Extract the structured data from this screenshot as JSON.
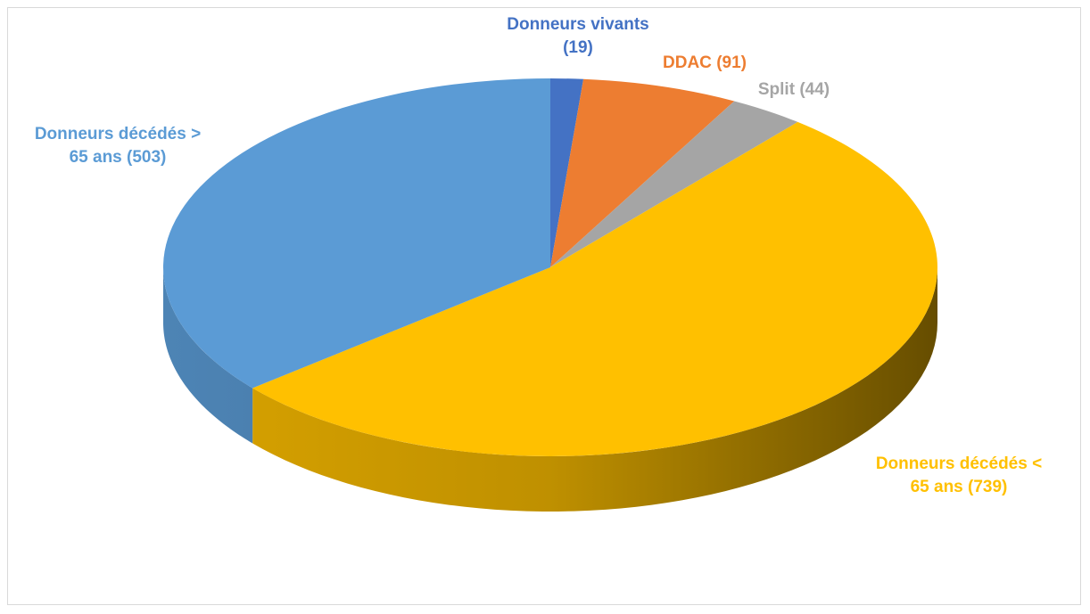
{
  "chart_data": {
    "type": "pie",
    "categories": [
      "Donneurs vivants",
      "DDAC",
      "Split",
      "Donneurs décédés < 65 ans",
      "Donneurs décédés > 65 ans"
    ],
    "values": [
      19,
      91,
      44,
      739,
      503
    ],
    "value_labels": [
      "(19)",
      "(91)",
      "(44)",
      "(739)",
      "(503)"
    ],
    "colors": [
      "#4472c4",
      "#ed7d31",
      "#a5a5a5",
      "#ffc000",
      "#5b9bd5"
    ]
  }
}
